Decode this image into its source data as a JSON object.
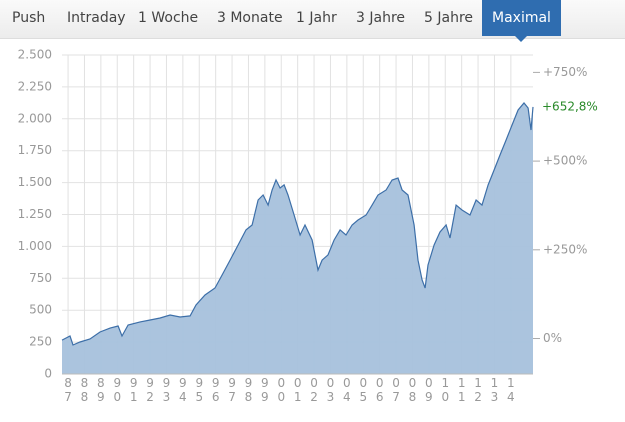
{
  "tabs": [
    "Push",
    "Intraday",
    "1 Woche",
    "3 Monate",
    "1 Jahr",
    "3 Jahre",
    "5 Jahre",
    "Maximal"
  ],
  "active_tab": 7,
  "chart_data": {
    "type": "area",
    "x": [
      1986.63,
      1987.12,
      1987.3,
      1987.73,
      1988.34,
      1988.95,
      1989.56,
      1990.05,
      1990.29,
      1990.66,
      1991.39,
      1992.0,
      1992.61,
      1993.22,
      1993.83,
      1994.44,
      1994.8,
      1995.35,
      1995.96,
      1996.39,
      1996.88,
      1997.37,
      1997.85,
      1998.22,
      1998.59,
      1998.89,
      1999.2,
      1999.44,
      1999.68,
      1999.93,
      2000.17,
      2000.41,
      2000.78,
      2001.15,
      2001.45,
      2001.88,
      2002.24,
      2002.49,
      2002.85,
      2003.22,
      2003.59,
      2003.95,
      2004.32,
      2004.68,
      2005.17,
      2005.54,
      2005.9,
      2006.39,
      2006.76,
      2007.12,
      2007.37,
      2007.73,
      2008.1,
      2008.34,
      2008.59,
      2008.77,
      2008.95,
      2009.32,
      2009.68,
      2010.05,
      2010.29,
      2010.66,
      2011.02,
      2011.51,
      2011.88,
      2012.24,
      2012.61,
      2012.98,
      2013.34,
      2013.71,
      2014.07,
      2014.44,
      2014.8,
      2015.05,
      2015.23,
      2015.35
    ],
    "series": [
      {
        "color": "#3d6fa8",
        "fill": "#a6c1dc",
        "axis": "y",
        "values": [
          266,
          298,
          227,
          251,
          274,
          329,
          360,
          376,
          298,
          384,
          408,
          423,
          439,
          462,
          447,
          455,
          541,
          619,
          674,
          776,
          893,
          1011,
          1129,
          1168,
          1364,
          1403,
          1324,
          1442,
          1520,
          1458,
          1482,
          1403,
          1246,
          1089,
          1168,
          1050,
          815,
          893,
          933,
          1050,
          1129,
          1089,
          1168,
          1207,
          1246,
          1324,
          1403,
          1442,
          1520,
          1536,
          1442,
          1403,
          1168,
          893,
          737,
          674,
          854,
          1011,
          1113,
          1168,
          1066,
          1324,
          1285,
          1246,
          1364,
          1324,
          1481,
          1599,
          1716,
          1834,
          1951,
          2069,
          2124,
          2085,
          1912,
          2093
        ]
      }
    ],
    "xlim": [
      1986.63,
      2015.35
    ],
    "xticks": [
      {
        "value": 1987,
        "label": "87"
      },
      {
        "value": 1988,
        "label": "88"
      },
      {
        "value": 1989,
        "label": "89"
      },
      {
        "value": 1990,
        "label": "90"
      },
      {
        "value": 1991,
        "label": "91"
      },
      {
        "value": 1992,
        "label": "92"
      },
      {
        "value": 1993,
        "label": "93"
      },
      {
        "value": 1994,
        "label": "94"
      },
      {
        "value": 1995,
        "label": "95"
      },
      {
        "value": 1996,
        "label": "96"
      },
      {
        "value": 1997,
        "label": "97"
      },
      {
        "value": 1998,
        "label": "98"
      },
      {
        "value": 1999,
        "label": "99"
      },
      {
        "value": 2000,
        "label": "00"
      },
      {
        "value": 2001,
        "label": "01"
      },
      {
        "value": 2002,
        "label": "02"
      },
      {
        "value": 2003,
        "label": "03"
      },
      {
        "value": 2004,
        "label": "04"
      },
      {
        "value": 2005,
        "label": "05"
      },
      {
        "value": 2006,
        "label": "06"
      },
      {
        "value": 2007,
        "label": "07"
      },
      {
        "value": 2008,
        "label": "08"
      },
      {
        "value": 2009,
        "label": "09"
      },
      {
        "value": 2010,
        "label": "10"
      },
      {
        "value": 2011,
        "label": "11"
      },
      {
        "value": 2012,
        "label": "12"
      },
      {
        "value": 2013,
        "label": "13"
      },
      {
        "value": 2014,
        "label": "14"
      }
    ],
    "ylim": [
      0,
      2500
    ],
    "yticks": [
      0,
      250,
      500,
      750,
      {
        "value": 1000,
        "label": "1.000"
      },
      {
        "value": 1250,
        "label": "1.250"
      },
      {
        "value": 1500,
        "label": "1.500"
      },
      {
        "value": 1750,
        "label": "1.750"
      },
      {
        "value": 2000,
        "label": "2.000"
      },
      {
        "value": 2250,
        "label": "2.250"
      },
      {
        "value": 2500,
        "label": "2.500"
      }
    ],
    "y2lim": [
      -100,
      799
    ],
    "y2ticks": [
      {
        "value": 0,
        "label": "0%"
      },
      {
        "value": 250,
        "label": "+250%"
      },
      {
        "value": 500,
        "label": "+500%"
      },
      {
        "value": 750,
        "label": "+750%"
      }
    ],
    "last_change": {
      "value": 652.8,
      "label": "+652,8%",
      "color": "#2a8a2a",
      "axis": "y2"
    },
    "grid": true
  }
}
